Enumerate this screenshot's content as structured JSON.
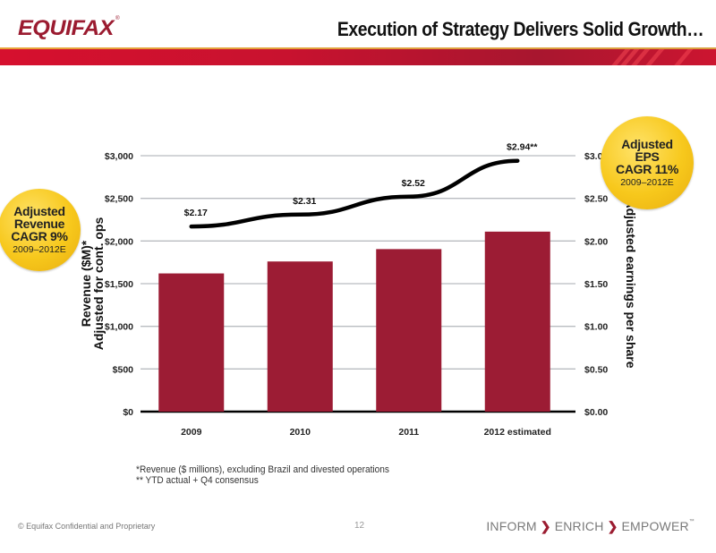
{
  "header": {
    "logo_text": "EQUIFAX",
    "logo_mark": "®",
    "title": "Execution of Strategy Delivers Solid Growth…"
  },
  "colors": {
    "brand_red": "#9b1b30",
    "bar_color": "#9c1c34",
    "line_color": "#000000",
    "badge_gold": "#f7c81c",
    "header_band": "#c8122f"
  },
  "badges": {
    "revenue": {
      "lines": [
        "Adjusted",
        "Revenue",
        "CAGR 9%"
      ],
      "years": "2009–2012E"
    },
    "eps": {
      "lines": [
        "Adjusted",
        "EPS",
        "CAGR 11%"
      ],
      "years": "2009–2012E"
    }
  },
  "chart_data": {
    "type": "bar",
    "title": "",
    "categories": [
      "2009",
      "2010",
      "2011",
      "2012 estimated"
    ],
    "series": [
      {
        "name": "Revenue ($M)",
        "type": "bar",
        "axis": "left",
        "values": [
          1620,
          1760,
          1905,
          2110
        ]
      },
      {
        "name": "Adjusted earnings per share",
        "type": "line",
        "axis": "right",
        "values": [
          2.17,
          2.31,
          2.52,
          2.94
        ],
        "labels": [
          "$2.17",
          "$2.31",
          "$2.52",
          "$2.94**"
        ]
      }
    ],
    "ylabel": [
      "Revenue ($M)*",
      "Adjusted for cont. ops"
    ],
    "ylabel_right": "Adjusted earnings per share",
    "ylim": [
      0,
      3000
    ],
    "ylim_right": [
      0,
      3.0
    ],
    "yticks": [
      0,
      500,
      1000,
      1500,
      2000,
      2500,
      3000
    ],
    "ytick_labels": [
      "$0",
      "$500",
      "$1,000",
      "$1,500",
      "$2,000",
      "$2,500",
      "$3,000"
    ],
    "yticks_right": [
      0,
      0.5,
      1.0,
      1.5,
      2.0,
      2.5,
      3.0
    ],
    "ytick_labels_right": [
      "$0.00",
      "$0.50",
      "$1.00",
      "$1.50",
      "$2.00",
      "$2.50",
      "$3.00"
    ],
    "grid": true,
    "legend": "none"
  },
  "footnotes": [
    "*Revenue ($ millions), excluding Brazil and divested operations",
    "** YTD actual + Q4 consensus"
  ],
  "footer": {
    "confidential": "© Equifax Confidential and Proprietary",
    "page_number": "12",
    "tagline": [
      "INFORM",
      "ENRICH",
      "EMPOWER"
    ],
    "tagline_separator": "❯",
    "trademark": "™"
  }
}
